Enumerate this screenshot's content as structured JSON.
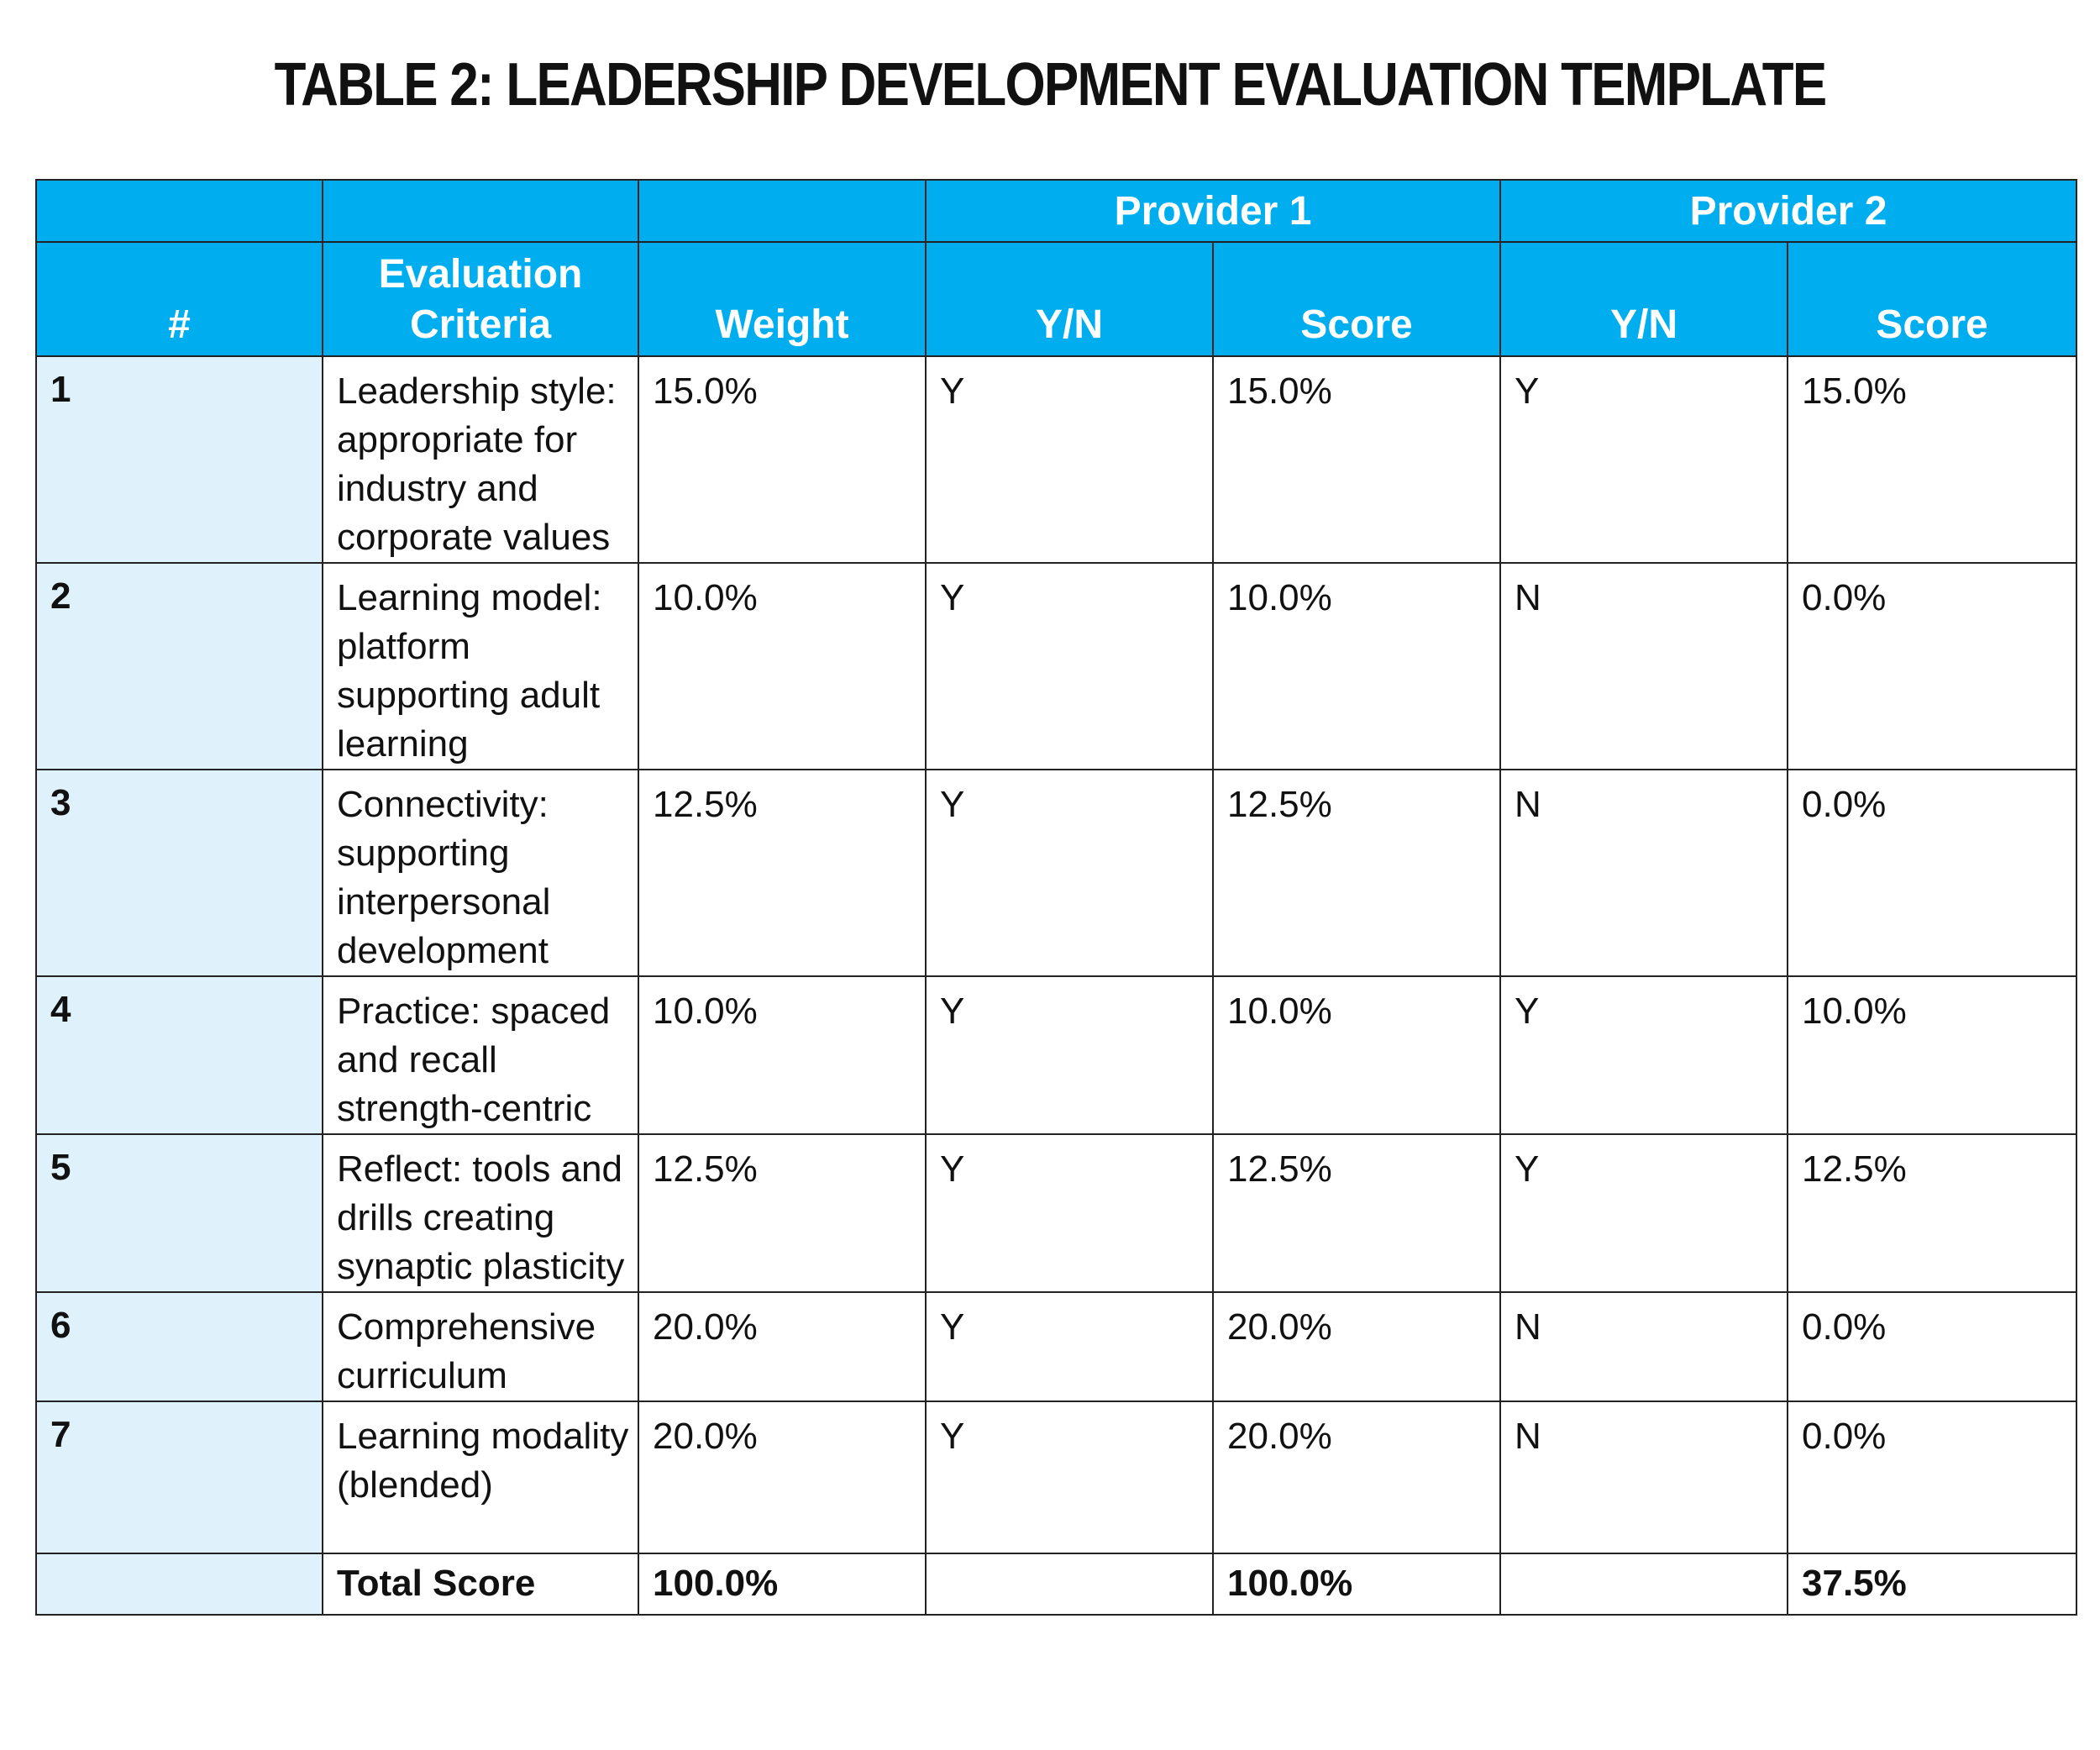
{
  "title": "TABLE 2: LEADERSHIP DEVELOPMENT EVALUATION TEMPLATE",
  "headers": {
    "provider_1": "Provider 1",
    "provider_2": "Provider 2",
    "num": "#",
    "criteria": "Evaluation Criteria",
    "weight": "Weight",
    "p1_yn": "Y/N",
    "p1_score": "Score",
    "p2_yn": "Y/N",
    "p2_score": "Score"
  },
  "rows": [
    {
      "num": "1",
      "criteria": "Leadership style: appropriate for industry and corporate values",
      "weight": "15.0%",
      "p1_yn": "Y",
      "p1_score": "15.0%",
      "p2_yn": "Y",
      "p2_score": "15.0%"
    },
    {
      "num": "2",
      "criteria": "Learning model: platform supporting adult learning",
      "weight": "10.0%",
      "p1_yn": "Y",
      "p1_score": "10.0%",
      "p2_yn": "N",
      "p2_score": "0.0%"
    },
    {
      "num": "3",
      "criteria": "Connectivity: supporting interpersonal development",
      "weight": "12.5%",
      "p1_yn": "Y",
      "p1_score": "12.5%",
      "p2_yn": "N",
      "p2_score": "0.0%"
    },
    {
      "num": "4",
      "criteria": "Practice: spaced and recall strength-centric",
      "weight": "10.0%",
      "p1_yn": "Y",
      "p1_score": "10.0%",
      "p2_yn": "Y",
      "p2_score": "10.0%"
    },
    {
      "num": "5",
      "criteria": "Reflect: tools and drills creating synaptic plasticity",
      "weight": "12.5%",
      "p1_yn": "Y",
      "p1_score": "12.5%",
      "p2_yn": "Y",
      "p2_score": "12.5%"
    },
    {
      "num": "6",
      "criteria": "Comprehensive curriculum",
      "weight": "20.0%",
      "p1_yn": "Y",
      "p1_score": "20.0%",
      "p2_yn": "N",
      "p2_score": "0.0%"
    },
    {
      "num": "7",
      "criteria": "Learning modality (blended)",
      "weight": "20.0%",
      "p1_yn": "Y",
      "p1_score": "20.0%",
      "p2_yn": "N",
      "p2_score": "0.0%"
    }
  ],
  "total": {
    "label": "Total Score",
    "weight": "100.0%",
    "p1_score": "100.0%",
    "p2_score": "37.5%"
  },
  "colors": {
    "header_bg": "#00aeef",
    "header_text": "#ffffff",
    "num_col_bg": "#dff1fb",
    "border": "#222222"
  }
}
